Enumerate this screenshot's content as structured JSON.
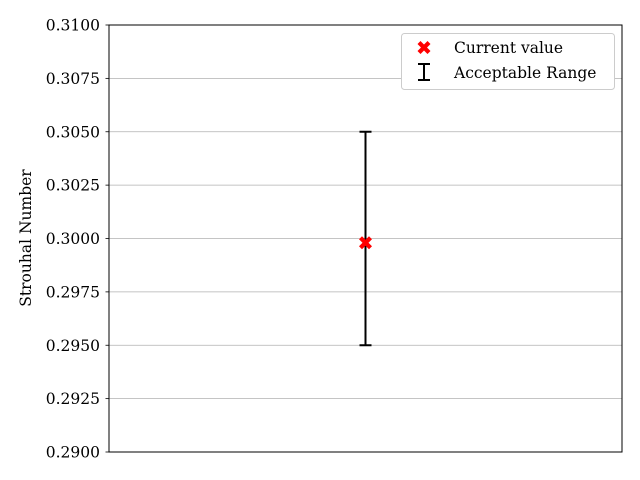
{
  "chart_data": {
    "type": "scatter",
    "title": "",
    "xlabel": "",
    "ylabel": "Strouhal Number",
    "ylim": [
      0.29,
      0.31
    ],
    "yticks": [
      "0.2900",
      "0.2925",
      "0.2950",
      "0.2975",
      "0.3000",
      "0.3025",
      "0.3050",
      "0.3075",
      "0.3100"
    ],
    "grid": "horizontal",
    "legend_position": "top-right",
    "series": [
      {
        "name": "Current value",
        "marker": "x-filled",
        "color": "#ff0000",
        "x": [
          0.5
        ],
        "y": [
          0.2998
        ]
      },
      {
        "name": "Acceptable Range",
        "marker": "errorbar",
        "color": "#000000",
        "x": [
          0.5
        ],
        "low": [
          0.295
        ],
        "high": [
          0.305
        ]
      }
    ]
  }
}
